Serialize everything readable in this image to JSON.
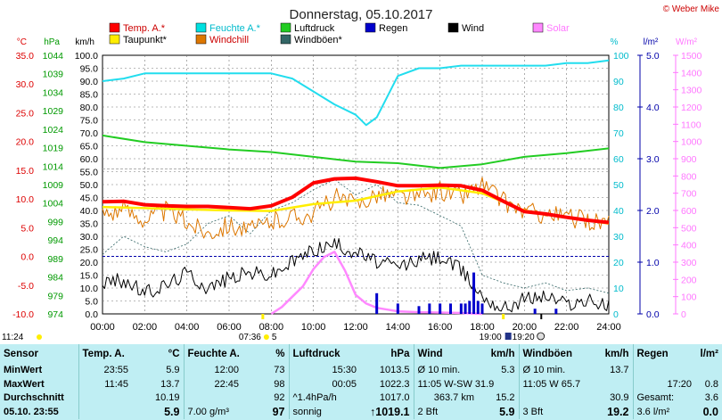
{
  "chart_data": {
    "type": "line",
    "title": "Donnerstag, 05.10.2017",
    "credit": "© Weber Mike",
    "x_ticks": [
      "00:00",
      "02:00",
      "04:00",
      "06:00",
      "08:00",
      "10:00",
      "12:00",
      "14:00",
      "16:00",
      "18:00",
      "20:00",
      "22:00",
      "24:00"
    ],
    "axes": {
      "temp_c": {
        "unit": "°C",
        "ticks": [
          "35.0",
          "30.0",
          "25.0",
          "20.0",
          "15.0",
          "10.0",
          "5.0",
          "0.0",
          "-5.0",
          "-10.0"
        ],
        "range": [
          -10,
          35
        ],
        "color": "#e00000"
      },
      "pressure_hpa": {
        "unit": "hPa",
        "ticks": [
          "1044",
          "1039",
          "1034",
          "1029",
          "1024",
          "1019",
          "1014",
          "1009",
          "1004",
          "999",
          "994",
          "989",
          "984",
          "979",
          "974"
        ],
        "range": [
          974,
          1044
        ],
        "color": "#00aa00"
      },
      "wind_kmh": {
        "unit": "km/h",
        "ticks": [
          "100.0",
          "95.0",
          "90.0",
          "85.0",
          "80.0",
          "75.0",
          "70.0",
          "65.0",
          "60.0",
          "55.0",
          "50.0",
          "45.0",
          "40.0",
          "35.0",
          "30.0",
          "25.0",
          "20.0",
          "15.0",
          "10.0",
          "5.0",
          "0.0"
        ],
        "range": [
          0,
          100
        ],
        "color": "#000000"
      },
      "humidity_pct": {
        "unit": "%",
        "ticks": [
          "100",
          "90",
          "80",
          "70",
          "60",
          "50",
          "40",
          "30",
          "20",
          "10",
          "0"
        ],
        "range": [
          0,
          100
        ],
        "color": "#00cccc"
      },
      "rain_lm2": {
        "unit": "l/m²",
        "ticks": [
          "5.0",
          "4.0",
          "3.0",
          "2.0",
          "1.0",
          "0.0"
        ],
        "range": [
          0,
          5
        ],
        "color": "#0000cc"
      },
      "solar_wm2": {
        "unit": "W/m²",
        "ticks": [
          "1500",
          "1400",
          "1300",
          "1200",
          "1100",
          "1000",
          "900",
          "800",
          "700",
          "600",
          "500",
          "400",
          "300",
          "200",
          "100",
          "0"
        ],
        "range": [
          0,
          1500
        ],
        "color": "#ff88ff"
      }
    },
    "legend": [
      {
        "name": "Temp. A.*",
        "color": "#ff0000"
      },
      {
        "name": "Feuchte A.*",
        "color": "#00e0e0"
      },
      {
        "name": "Luftdruck",
        "color": "#22cc22"
      },
      {
        "name": "Regen",
        "color": "#0000cc"
      },
      {
        "name": "Wind",
        "color": "#000000"
      },
      {
        "name": "Solar",
        "color": "#ff88ff"
      },
      {
        "name": "Taupunkt*",
        "color": "#ffee00"
      },
      {
        "name": "Windchill",
        "color": "#dd7700"
      },
      {
        "name": "Windböen*",
        "color": "#336666"
      }
    ],
    "series": [
      {
        "name": "Temp. A.*",
        "axis": "temp_c",
        "x": [
          0,
          1,
          2,
          3,
          4,
          5,
          6,
          7,
          8,
          9,
          10,
          11,
          12,
          13,
          14,
          15,
          16,
          17,
          18,
          19,
          20,
          21,
          22,
          23,
          24
        ],
        "values": [
          9.5,
          9.6,
          9.0,
          8.8,
          8.7,
          8.7,
          8.5,
          8.3,
          8.8,
          10.3,
          12.8,
          13.5,
          13.6,
          13.0,
          12.3,
          12.3,
          12.4,
          12.3,
          11.5,
          9.6,
          7.8,
          7.4,
          6.8,
          6.3,
          5.9
        ]
      },
      {
        "name": "Taupunkt*",
        "axis": "temp_c",
        "x": [
          0,
          2,
          4,
          6,
          8,
          10,
          12,
          14,
          16,
          18,
          20,
          22,
          24
        ],
        "values": [
          8.6,
          8.4,
          8.2,
          8.0,
          7.9,
          9.1,
          9.7,
          11.3,
          12.0,
          11.0,
          8.0,
          6.8,
          5.7
        ]
      },
      {
        "name": "Feuchte A.*",
        "axis": "humidity_pct",
        "x": [
          0,
          1,
          2,
          3,
          4,
          5,
          6,
          7,
          8,
          9,
          10,
          11,
          12,
          12.5,
          13,
          14,
          15,
          16,
          17,
          18,
          19,
          20,
          21,
          22,
          23,
          24
        ],
        "values": [
          90,
          91,
          93,
          93,
          93,
          93,
          93,
          93,
          93,
          91,
          86,
          81,
          77,
          73,
          76,
          92,
          95,
          95,
          96,
          96,
          96,
          96,
          96,
          97,
          97,
          98
        ]
      },
      {
        "name": "Luftdruck",
        "axis": "pressure_hpa",
        "x": [
          0,
          2,
          4,
          6,
          8,
          10,
          12,
          14,
          16,
          18,
          20,
          22,
          24
        ],
        "values": [
          1022.3,
          1020.5,
          1019.5,
          1018.5,
          1017.8,
          1016.5,
          1015.2,
          1014.8,
          1013.5,
          1014.5,
          1016.5,
          1017.5,
          1018.8
        ]
      },
      {
        "name": "Windchill",
        "axis": "temp_c",
        "x": [
          0,
          1,
          2,
          3,
          4,
          5,
          6,
          7,
          8,
          9,
          10,
          11,
          12,
          13,
          14,
          15,
          16,
          17,
          18,
          19,
          20,
          21,
          22,
          23,
          24
        ],
        "values": [
          7.5,
          8.2,
          6.5,
          7.9,
          6,
          4.2,
          5.6,
          4.4,
          6.1,
          6.9,
          7.5,
          10.3,
          8.9,
          11,
          10.6,
          10.2,
          11.5,
          10.5,
          12.5,
          9.6,
          7.8,
          7.4,
          6.8,
          6.3,
          5.9
        ]
      },
      {
        "name": "Windböen*",
        "axis": "wind_kmh",
        "x": [
          0,
          1,
          2,
          3,
          4,
          5,
          6,
          7,
          8,
          9,
          10,
          11,
          12,
          13,
          14,
          15,
          16,
          17,
          18,
          19,
          20,
          21,
          22,
          23,
          24
        ],
        "values": [
          23,
          30,
          26,
          24,
          27,
          35,
          38,
          31,
          40,
          43,
          48,
          52,
          46,
          50,
          43,
          42,
          38,
          34,
          15,
          12,
          10,
          12,
          9,
          10,
          8
        ]
      },
      {
        "name": "Wind",
        "axis": "wind_kmh",
        "x": [
          0,
          1,
          2,
          3,
          4,
          5,
          6,
          7,
          8,
          9,
          10,
          11,
          12,
          13,
          14,
          15,
          16,
          17,
          18,
          19,
          20,
          21,
          22,
          23,
          24
        ],
        "values": [
          12,
          13,
          8,
          11,
          16,
          10,
          14,
          16,
          15,
          20,
          25,
          27,
          24,
          20,
          18,
          21,
          22,
          17,
          7,
          2,
          6,
          7,
          4,
          5,
          3
        ]
      },
      {
        "name": "Solar",
        "axis": "solar_wm2",
        "x": [
          8,
          8.5,
          9,
          9.5,
          10,
          10.5,
          11,
          11.5,
          12,
          12.5,
          13,
          13.5,
          14,
          15,
          16,
          17,
          18
        ],
        "values": [
          0,
          40,
          100,
          160,
          260,
          330,
          360,
          250,
          110,
          60,
          35,
          25,
          15,
          10,
          8,
          5,
          0
        ]
      },
      {
        "name": "Regen",
        "axis": "rain_lm2",
        "type": "bar",
        "x": [
          13,
          14,
          15,
          15.5,
          16,
          16.5,
          17,
          17.2,
          17.4,
          17.6,
          17.8,
          18,
          20.5,
          21.5
        ],
        "values": [
          0.4,
          0.2,
          0.15,
          0.2,
          0.2,
          0.2,
          0.2,
          0.2,
          0.25,
          0.8,
          0.25,
          0.2,
          0.1,
          0.1
        ]
      }
    ],
    "reference_lines": [
      {
        "axis": "temp_c",
        "value": 0.0,
        "color": "#0000aa"
      },
      {
        "axis": "pressure_hpa",
        "value": 1013.25,
        "color": "#aaaaaa"
      }
    ],
    "sun_markers": {
      "sunrise_time": "07:36",
      "sunrise_hours": "5",
      "sunset_time": "19:00",
      "moon_time": "19:20",
      "left_time": "11:24"
    }
  },
  "table": {
    "headers": [
      "Sensor",
      "Temp. A.",
      "°C",
      "Feuchte A.",
      "%",
      "Luftdruck",
      "hPa",
      "Wind",
      "km/h",
      "Windböen",
      "km/h",
      "Regen",
      "l/m²"
    ],
    "rows": [
      {
        "label": "MinWert",
        "cells": [
          "23:55",
          "5.9",
          "12:00",
          "73",
          "15:30",
          "1013.5",
          "Ø 10 min.",
          "5.3",
          "Ø 10 min.",
          "13.7",
          "",
          ""
        ]
      },
      {
        "label": "MaxWert",
        "cells": [
          "11:45",
          "13.7",
          "22:45",
          "98",
          "00:05",
          "1022.3",
          "11:05     W-SW 31.9",
          "",
          "11:05          W 65.7",
          "",
          "17:20",
          "0.8"
        ]
      },
      {
        "label": "Durchschnitt",
        "cells": [
          "",
          "10.19",
          "",
          "92",
          "^1.4hPa/h",
          "1017.0",
          "363.7 km",
          "15.2",
          "",
          "30.9",
          "Gesamt:",
          "3.6"
        ]
      },
      {
        "label": "05.10. 23:55",
        "cells": [
          "",
          "5.9",
          "7.00 g/m³",
          "97",
          "sonnig",
          "↑1019.1",
          "2 Bft",
          "5.9",
          "3 Bft",
          "19.2",
          "3.6 l/m²",
          "0.0"
        ]
      }
    ]
  }
}
